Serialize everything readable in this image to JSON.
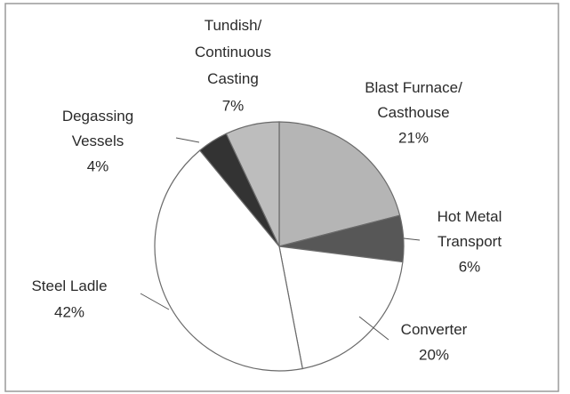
{
  "chart_data": {
    "type": "pie",
    "categories": [
      "Blast Furnace/\nCasthouse",
      "Hot Metal\nTransport",
      "Converter",
      "Steel Ladle",
      "Degassing\nVessels",
      "Tundish/\nContinuous\nCasting"
    ],
    "values": [
      21,
      6,
      20,
      42,
      4,
      7
    ],
    "value_labels": [
      "21%",
      "6%",
      "20%",
      "42%",
      "4%",
      "7%"
    ],
    "colors": [
      "#b5b5b5",
      "#575757",
      "#ffffff",
      "#ffffff",
      "#333333",
      "#bdbdbd"
    ]
  }
}
